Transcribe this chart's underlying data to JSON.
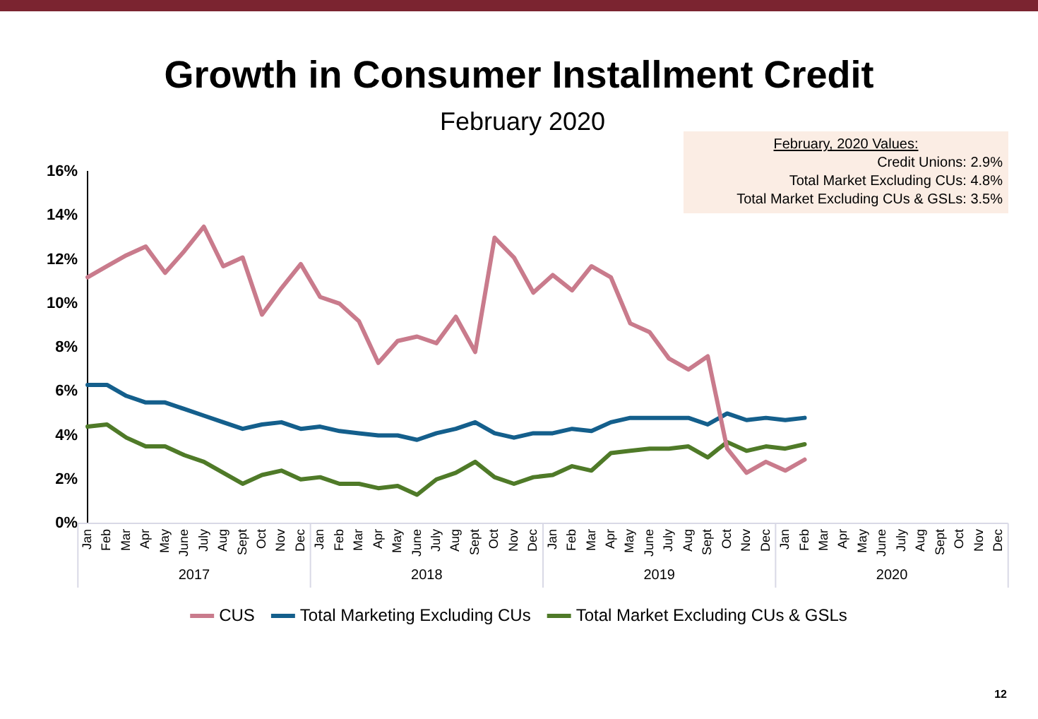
{
  "chart_data": {
    "type": "line",
    "title": "Growth in Consumer Installment Credit",
    "subtitle": "February 2020",
    "categories": [
      "Jan",
      "Feb",
      "Mar",
      "Apr",
      "May",
      "June",
      "July",
      "Aug",
      "Sept",
      "Oct",
      "Nov",
      "Dec",
      "Jan",
      "Feb",
      "Mar",
      "Apr",
      "May",
      "June",
      "July",
      "Aug",
      "Sept",
      "Oct",
      "Nov",
      "Dec",
      "Jan",
      "Feb",
      "Mar",
      "Apr",
      "May",
      "June",
      "July",
      "Aug",
      "Sept",
      "Oct",
      "Nov",
      "Dec",
      "Jan",
      "Feb",
      "Mar",
      "Apr",
      "May",
      "June",
      "July",
      "Aug",
      "Sept",
      "Oct",
      "Nov",
      "Dec"
    ],
    "series": [
      {
        "name": "CUS",
        "color": "#c97b8c",
        "values": [
          11.2,
          11.7,
          12.2,
          12.6,
          11.4,
          12.4,
          13.5,
          11.7,
          12.1,
          9.5,
          10.7,
          11.8,
          10.3,
          10.0,
          9.2,
          7.3,
          8.3,
          8.5,
          8.2,
          9.4,
          7.8,
          13.0,
          12.1,
          10.5,
          11.3,
          10.6,
          11.7,
          11.2,
          9.1,
          8.7,
          7.5,
          7.0,
          7.6,
          3.4,
          2.3,
          2.8,
          2.4,
          2.9,
          null,
          null,
          null,
          null,
          null,
          null,
          null,
          null,
          null,
          null
        ]
      },
      {
        "name": "Total Marketing Excluding CUs",
        "color": "#145f8c",
        "values": [
          6.3,
          6.3,
          5.8,
          5.5,
          5.5,
          5.2,
          4.9,
          4.6,
          4.3,
          4.5,
          4.6,
          4.3,
          4.4,
          4.2,
          4.1,
          4.0,
          4.0,
          3.8,
          4.1,
          4.3,
          4.6,
          4.1,
          3.9,
          4.1,
          4.1,
          4.3,
          4.2,
          4.6,
          4.8,
          4.8,
          4.8,
          4.8,
          4.5,
          5.0,
          4.7,
          4.8,
          4.7,
          4.8,
          null,
          null,
          null,
          null,
          null,
          null,
          null,
          null,
          null,
          null
        ]
      },
      {
        "name": "Total Market Excluding CUs & GSLs",
        "color": "#4f7a28",
        "values": [
          4.4,
          4.5,
          3.9,
          3.5,
          3.5,
          3.1,
          2.8,
          2.3,
          1.8,
          2.2,
          2.4,
          2.0,
          2.1,
          1.8,
          1.8,
          1.6,
          1.7,
          1.3,
          2.0,
          2.3,
          2.8,
          2.1,
          1.8,
          2.1,
          2.2,
          2.6,
          2.4,
          3.2,
          3.3,
          3.4,
          3.4,
          3.5,
          3.0,
          3.7,
          3.3,
          3.5,
          3.4,
          3.6,
          null,
          null,
          null,
          null,
          null,
          null,
          null,
          null,
          null,
          null
        ]
      }
    ],
    "ylim": [
      0,
      16
    ],
    "yticks": [
      {
        "value": 0,
        "label": "0%"
      },
      {
        "value": 2,
        "label": "2%"
      },
      {
        "value": 4,
        "label": "4%"
      },
      {
        "value": 6,
        "label": "6%"
      },
      {
        "value": 8,
        "label": "8%"
      },
      {
        "value": 10,
        "label": "10%"
      },
      {
        "value": 12,
        "label": "12%"
      },
      {
        "value": 14,
        "label": "14%"
      },
      {
        "value": 16,
        "label": "16%"
      }
    ],
    "grid": false,
    "legend": "bottom",
    "marker": "none",
    "line_style": "solid",
    "annotations": [
      "2017",
      "2018",
      "2019",
      "2020",
      "February, 2020 Values:",
      "Credit Unions: 2.9%",
      "Total Market Excluding CUs: 4.8%",
      "Total Market Excluding CUs & GSLs: 3.5%",
      "12"
    ]
  }
}
